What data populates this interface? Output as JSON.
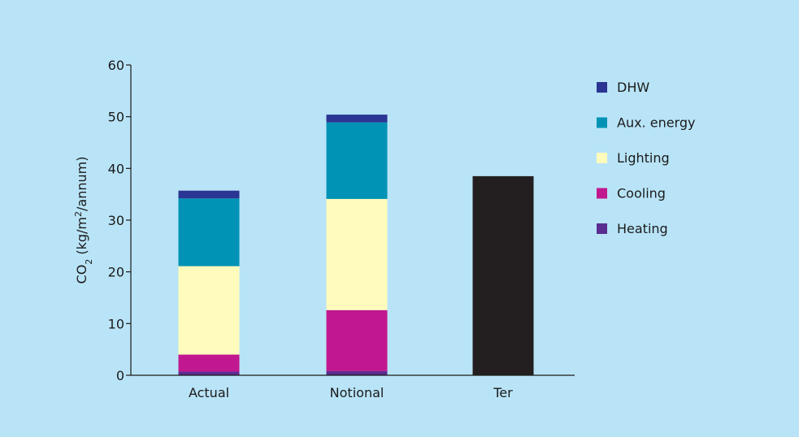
{
  "chart_data": {
    "type": "bar",
    "stacked": true,
    "categories": [
      "Actual",
      "Notional",
      "Ter"
    ],
    "ylabel": {
      "base": "CO",
      "sub": "2",
      "unit": " (kg/m",
      "sup": "2",
      "end": "/annum)"
    },
    "ylim": [
      0,
      60
    ],
    "yticks": [
      0,
      10,
      20,
      30,
      40,
      50,
      60
    ],
    "series": [
      {
        "name": "Heating",
        "color": "#5a2d91",
        "values": [
          0.7,
          0.8,
          0
        ]
      },
      {
        "name": "Cooling",
        "color": "#c2188f",
        "values": [
          3.3,
          11.8,
          0
        ]
      },
      {
        "name": "Lighting",
        "color": "#fffbbd",
        "values": [
          17.1,
          21.5,
          0
        ]
      },
      {
        "name": "Aux. energy",
        "color": "#0093b5",
        "values": [
          13.1,
          14.8,
          0
        ]
      },
      {
        "name": "DHW",
        "color": "#2b3594",
        "values": [
          1.5,
          1.5,
          0
        ]
      },
      {
        "name": "",
        "color": "#231f20",
        "values": [
          0,
          0,
          38.5
        ]
      }
    ],
    "legend": {
      "placement": "right",
      "order": [
        "DHW",
        "Aux. energy",
        "Lighting",
        "Cooling",
        "Heating"
      ]
    },
    "grid": false
  }
}
